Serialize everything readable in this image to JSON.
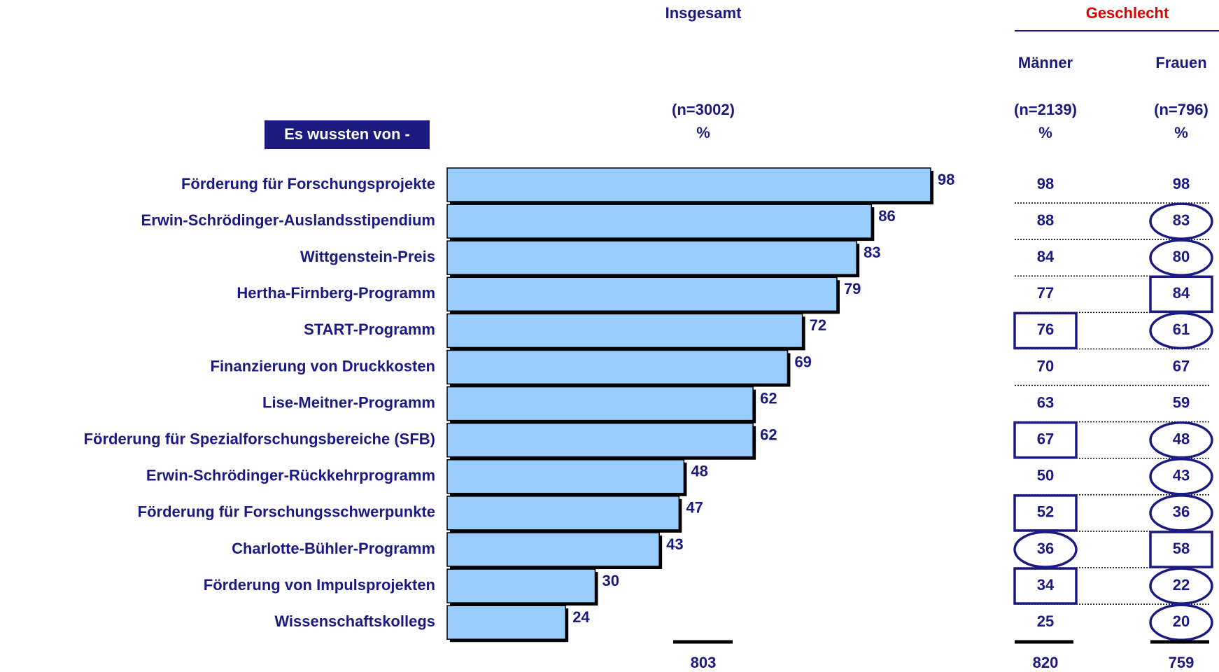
{
  "chart_data": {
    "type": "bar",
    "title": "Insgesamt",
    "group_title": "Geschlecht",
    "row_header": "Es wussten von -",
    "column_titles": [
      "Männer",
      "Frauen"
    ],
    "total_n": "(n=3002)",
    "column_n": [
      "(n=2139)",
      "(n=796)"
    ],
    "unit": "%",
    "categories": [
      "Förderung für Forschungsprojekte",
      "Erwin-Schrödinger-Auslandsstipendium",
      "Wittgenstein-Preis",
      "Hertha-Firnberg-Programm",
      "START-Programm",
      "Finanzierung von Druckkosten",
      "Lise-Meitner-Programm",
      "Förderung für Spezialforschungsbereiche (SFB)",
      "Erwin-Schrödinger-Rückkehrprogramm",
      "Förderung für Forschungsschwerpunkte",
      "Charlotte-Bühler-Programm",
      "Förderung von Impulsprojekten",
      "Wissenschaftskollegs"
    ],
    "values": [
      98,
      86,
      83,
      79,
      72,
      69,
      62,
      62,
      48,
      47,
      43,
      30,
      24
    ],
    "color": "#99ccff",
    "total_sum": 803,
    "columns": [
      {
        "name": "Männer",
        "values": [
          98,
          88,
          84,
          77,
          76,
          70,
          63,
          67,
          50,
          52,
          36,
          34,
          25
        ],
        "sum": 820,
        "markers": [
          null,
          null,
          null,
          null,
          "box",
          null,
          null,
          "box",
          null,
          "box",
          "circle",
          "box",
          null
        ]
      },
      {
        "name": "Frauen",
        "values": [
          98,
          83,
          80,
          84,
          61,
          67,
          59,
          48,
          43,
          36,
          58,
          22,
          20
        ],
        "sum": 759,
        "markers": [
          null,
          "circle",
          "circle",
          "box",
          "circle",
          null,
          null,
          "circle",
          "circle",
          "circle",
          "box",
          "circle",
          "circle"
        ]
      }
    ]
  }
}
